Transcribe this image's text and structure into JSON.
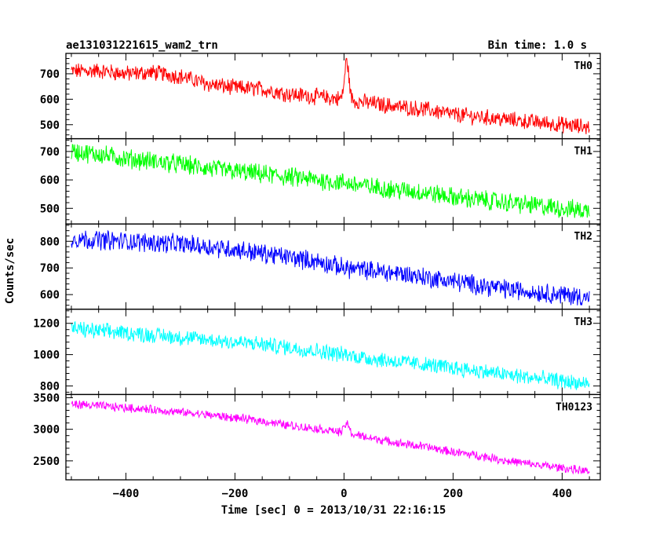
{
  "chart_data": {
    "type": "line",
    "title": "ae131031221615_wam2_trn",
    "subtitle": "Bin time: 1.0 s",
    "xlabel": "Time [sec] 0 = 2013/10/31 22:16:15",
    "ylabel": "Counts/sec",
    "xlim": [
      -510,
      470
    ],
    "x_ticks": [
      -400,
      -200,
      0,
      200,
      400
    ],
    "x_tick_labels": [
      "−400",
      "−200",
      "0",
      "200",
      "400"
    ],
    "grid": false,
    "panels": [
      {
        "name": "TH0",
        "color": "#ff0000",
        "ylim": [
          445,
          780
        ],
        "y_ticks": [
          500,
          600,
          700
        ],
        "series": {
          "x": [
            -500,
            -450,
            -400,
            -350,
            -300,
            -250,
            -200,
            -150,
            -100,
            -50,
            0,
            50,
            100,
            150,
            200,
            250,
            300,
            350,
            400,
            450
          ],
          "values": [
            710,
            712,
            700,
            705,
            690,
            660,
            645,
            640,
            620,
            610,
            600,
            585,
            570,
            560,
            540,
            530,
            520,
            510,
            500,
            490
          ]
        },
        "noise": 28,
        "spike": {
          "x": 5,
          "peak": 750
        }
      },
      {
        "name": "TH1",
        "color": "#00ff00",
        "ylim": [
          445,
          745
        ],
        "y_ticks": [
          500,
          600,
          700
        ],
        "series": {
          "x": [
            -500,
            -450,
            -400,
            -350,
            -300,
            -250,
            -200,
            -150,
            -100,
            -50,
            0,
            50,
            100,
            150,
            200,
            250,
            300,
            350,
            400,
            450
          ],
          "values": [
            700,
            690,
            675,
            665,
            655,
            640,
            630,
            620,
            610,
            600,
            590,
            575,
            565,
            555,
            540,
            530,
            520,
            510,
            500,
            490
          ]
        },
        "noise": 30
      },
      {
        "name": "TH2",
        "color": "#0000ff",
        "ylim": [
          545,
          865
        ],
        "y_ticks": [
          600,
          700,
          800
        ],
        "series": {
          "x": [
            -500,
            -450,
            -400,
            -350,
            -300,
            -250,
            -200,
            -150,
            -100,
            -50,
            0,
            50,
            100,
            150,
            200,
            250,
            300,
            350,
            400,
            450
          ],
          "values": [
            810,
            805,
            800,
            795,
            790,
            780,
            770,
            755,
            740,
            725,
            700,
            690,
            680,
            665,
            650,
            635,
            620,
            610,
            600,
            590
          ]
        },
        "noise": 32
      },
      {
        "name": "TH3",
        "color": "#00ffff",
        "ylim": [
          745,
          1290
        ],
        "y_ticks": [
          800,
          1000,
          1200
        ],
        "series": {
          "x": [
            -500,
            -450,
            -400,
            -350,
            -300,
            -250,
            -200,
            -150,
            -100,
            -50,
            0,
            50,
            100,
            150,
            200,
            250,
            300,
            350,
            400,
            450
          ],
          "values": [
            1165,
            1150,
            1140,
            1125,
            1110,
            1095,
            1080,
            1065,
            1045,
            1025,
            1000,
            975,
            955,
            935,
            915,
            895,
            870,
            850,
            830,
            810
          ]
        },
        "noise": 45
      },
      {
        "name": "TH0123",
        "color": "#ff00ff",
        "ylim": [
          2200,
          3550
        ],
        "y_ticks": [
          2500,
          3000,
          3500
        ],
        "series": {
          "x": [
            -500,
            -450,
            -400,
            -350,
            -300,
            -250,
            -200,
            -150,
            -100,
            -50,
            0,
            50,
            100,
            150,
            200,
            250,
            300,
            350,
            400,
            450
          ],
          "values": [
            3400,
            3370,
            3340,
            3310,
            3270,
            3230,
            3180,
            3130,
            3060,
            3010,
            2950,
            2860,
            2780,
            2720,
            2640,
            2580,
            2500,
            2440,
            2390,
            2330
          ]
        },
        "noise": 60,
        "spike": {
          "x": 5,
          "peak": 3100
        }
      }
    ]
  }
}
